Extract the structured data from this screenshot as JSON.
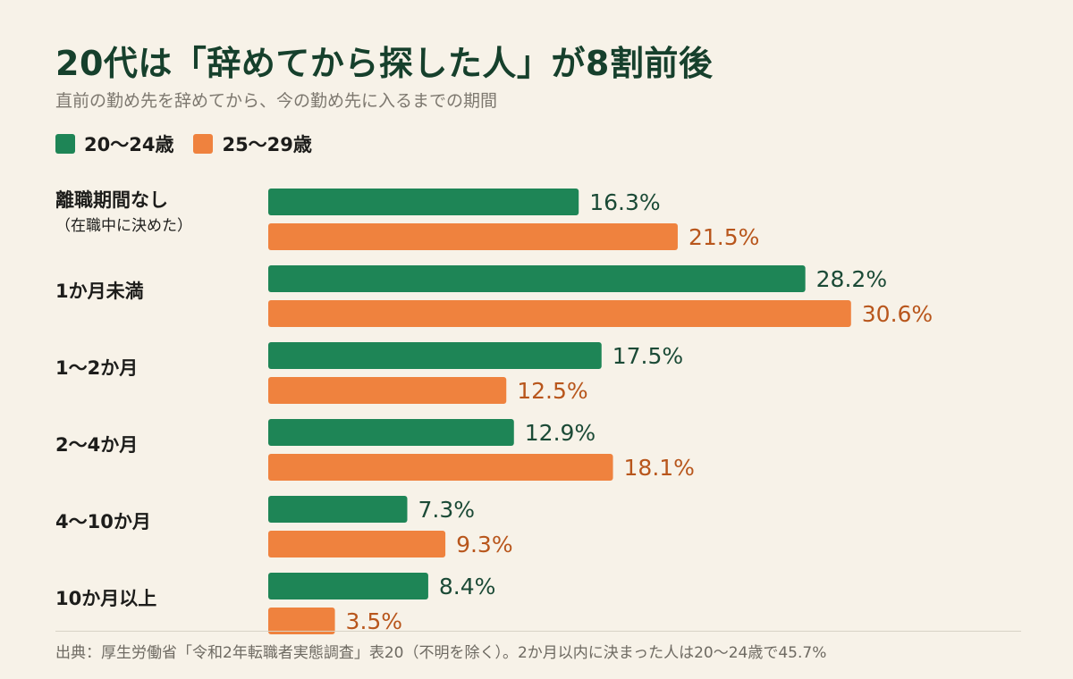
{
  "header": {
    "title": "20代は「辞めてから探した人」が8割前後",
    "subtitle": "直前の勤め先を辞めてから、今の勤め先に入るまでの期間"
  },
  "colors": {
    "series_a": "#1e8556",
    "series_b": "#ef823e",
    "label_a": "#1b4a36",
    "label_b": "#b8561c"
  },
  "chart_data": {
    "type": "bar",
    "orientation": "horizontal",
    "categories": [
      "離職期間なし",
      "1か月未満",
      "1〜2か月",
      "2〜4か月",
      "4〜10か月",
      "10か月以上"
    ],
    "category_notes": [
      "（在職中に決めた）",
      "",
      "",
      "",
      "",
      ""
    ],
    "series": [
      {
        "name": "20〜24歳",
        "values": [
          16.3,
          28.2,
          17.5,
          12.9,
          7.3,
          8.4
        ]
      },
      {
        "name": "25〜29歳",
        "values": [
          21.5,
          30.6,
          12.5,
          18.1,
          9.3,
          3.5
        ]
      }
    ],
    "value_labels": [
      [
        "16.3%",
        "28.2%",
        "17.5%",
        "12.9%",
        "7.3%",
        "8.4%"
      ],
      [
        "21.5%",
        "30.6%",
        "12.5%",
        "18.1%",
        "9.3%",
        "3.5%"
      ]
    ],
    "xlim": [
      0,
      32
    ],
    "grid": false,
    "legend_position": "top-left"
  },
  "footer": {
    "source": "出典：厚生労働省「令和2年転職者実態調査」表20（不明を除く）。2か月以内に決まった人は20〜24歳で45.7%"
  }
}
